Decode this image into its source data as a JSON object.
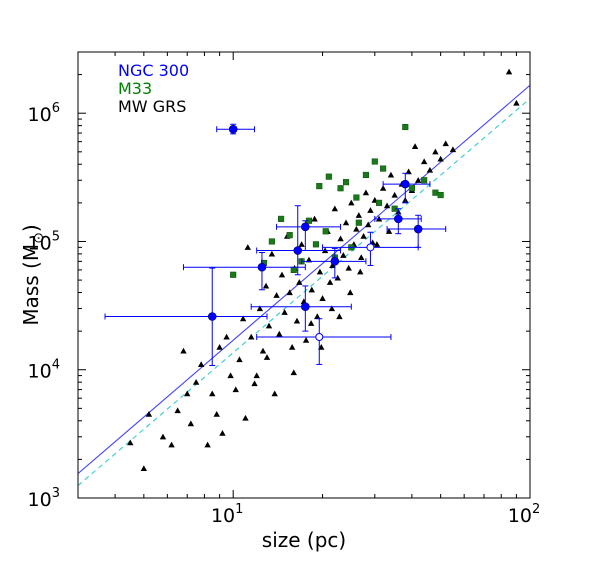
{
  "chart_data": {
    "type": "scatter",
    "xscale": "log",
    "yscale": "log",
    "xlim": [
      3,
      100
    ],
    "ylim": [
      1000,
      3000000
    ],
    "xlabel": "size (pc)",
    "ylabel_text": "Mass (M",
    "ylabel_sub": "⊙",
    "ylabel_close": ")",
    "xticks": [
      {
        "value": 10,
        "base": "10",
        "exp": "1"
      },
      {
        "value": 100,
        "base": "10",
        "exp": "2"
      }
    ],
    "yticks": [
      {
        "value": 1000,
        "base": "10",
        "exp": "3"
      },
      {
        "value": 10000,
        "base": "10",
        "exp": "4"
      },
      {
        "value": 100000,
        "base": "10",
        "exp": "5"
      },
      {
        "value": 1000000,
        "base": "10",
        "exp": "6"
      }
    ],
    "legend": [
      {
        "label": "NGC 300",
        "color": "#0000ff"
      },
      {
        "label": "M33",
        "color": "#008000"
      },
      {
        "label": "MW GRS",
        "color": "#000000"
      }
    ],
    "fit_lines": [
      {
        "style": "solid",
        "color": "#4444ff",
        "points": [
          [
            3,
            1550
          ],
          [
            100,
            1650000
          ]
        ]
      },
      {
        "style": "dashed",
        "color": "#33cccc",
        "points": [
          [
            3,
            1250
          ],
          [
            100,
            1300000
          ]
        ]
      }
    ],
    "series": [
      {
        "name": "NGC 300",
        "color": "#0000ff",
        "marker": "circle",
        "points": [
          {
            "x": 10.0,
            "y": 750000,
            "xerr": [
              8.8,
              11.8
            ],
            "yerr": [
              690000,
              820000
            ]
          },
          {
            "x": 8.5,
            "y": 26000,
            "xerr": [
              3.7,
              13.0
            ],
            "yerr": [
              10800,
              62000
            ]
          },
          {
            "x": 12.5,
            "y": 63000,
            "xerr": [
              6.8,
              17.5
            ],
            "yerr": [
              42000,
              82000
            ]
          },
          {
            "x": 16.5,
            "y": 85000,
            "xerr": [
              12.0,
              23.0
            ],
            "yerr": [
              55000,
              190000
            ]
          },
          {
            "x": 17.5,
            "y": 130000,
            "xerr": [
              14.0,
              23.0
            ],
            "yerr": [
              85000,
              145000
            ]
          },
          {
            "x": 17.5,
            "y": 31000,
            "xerr": [
              11.5,
              25.0
            ],
            "yerr": [
              20000,
              45000
            ]
          },
          {
            "x": 22.0,
            "y": 70000,
            "xerr": [
              17.0,
              28.0
            ],
            "yerr": [
              52000,
              88000
            ]
          },
          {
            "x": 36.0,
            "y": 150000,
            "xerr": [
              30.0,
              43.0
            ],
            "yerr": [
              115000,
              180000
            ]
          },
          {
            "x": 38.0,
            "y": 280000,
            "xerr": [
              32.0,
              46.0
            ],
            "yerr": [
              200000,
              340000
            ]
          },
          {
            "x": 42.0,
            "y": 125000,
            "xerr": [
              33.0,
              52.0
            ],
            "yerr": [
              90000,
              160000
            ]
          }
        ]
      },
      {
        "name": "NGC 300 (open)",
        "color": "#0000ff",
        "marker": "open-circle",
        "points": [
          {
            "x": 19.5,
            "y": 18000,
            "xerr": [
              12.0,
              34.0
            ],
            "yerr": [
              11000,
              25000
            ]
          },
          {
            "x": 29.0,
            "y": 90000,
            "xerr": [
              20.0,
              42.0
            ],
            "yerr": [
              65000,
              118000
            ]
          }
        ]
      },
      {
        "name": "M33",
        "color": "#1a7a1a",
        "marker": "square",
        "points": [
          {
            "x": 10.0,
            "y": 55000
          },
          {
            "x": 12.7,
            "y": 68000
          },
          {
            "x": 13.5,
            "y": 100000
          },
          {
            "x": 14.5,
            "y": 150000
          },
          {
            "x": 15.5,
            "y": 112000
          },
          {
            "x": 16.0,
            "y": 60000
          },
          {
            "x": 17.0,
            "y": 70000
          },
          {
            "x": 18.0,
            "y": 145000
          },
          {
            "x": 19.0,
            "y": 95000
          },
          {
            "x": 19.5,
            "y": 270000
          },
          {
            "x": 20.5,
            "y": 120000
          },
          {
            "x": 21.0,
            "y": 320000
          },
          {
            "x": 22.0,
            "y": 75000
          },
          {
            "x": 23.0,
            "y": 260000
          },
          {
            "x": 24.0,
            "y": 290000
          },
          {
            "x": 25.0,
            "y": 90000
          },
          {
            "x": 26.0,
            "y": 220000
          },
          {
            "x": 28.0,
            "y": 330000
          },
          {
            "x": 30.0,
            "y": 420000
          },
          {
            "x": 32.0,
            "y": 370000
          },
          {
            "x": 35.0,
            "y": 180000
          },
          {
            "x": 38.0,
            "y": 780000
          },
          {
            "x": 40.0,
            "y": 260000
          },
          {
            "x": 44.0,
            "y": 300000
          },
          {
            "x": 48.0,
            "y": 240000
          },
          {
            "x": 50.0,
            "y": 230000
          },
          {
            "x": 26.5,
            "y": 140000
          },
          {
            "x": 31.0,
            "y": 200000
          }
        ]
      },
      {
        "name": "MW GRS",
        "color": "#000000",
        "marker": "triangle",
        "points": [
          {
            "x": 4.5,
            "y": 2700
          },
          {
            "x": 5.0,
            "y": 1700
          },
          {
            "x": 5.2,
            "y": 4500
          },
          {
            "x": 5.8,
            "y": 3000
          },
          {
            "x": 6.2,
            "y": 2600
          },
          {
            "x": 6.5,
            "y": 4800
          },
          {
            "x": 6.8,
            "y": 14000
          },
          {
            "x": 7.0,
            "y": 6500
          },
          {
            "x": 7.2,
            "y": 3800
          },
          {
            "x": 7.5,
            "y": 8000
          },
          {
            "x": 7.8,
            "y": 11000
          },
          {
            "x": 8.2,
            "y": 2600
          },
          {
            "x": 8.5,
            "y": 6500
          },
          {
            "x": 8.8,
            "y": 4500
          },
          {
            "x": 9.0,
            "y": 15000
          },
          {
            "x": 9.2,
            "y": 3200
          },
          {
            "x": 9.5,
            "y": 18000
          },
          {
            "x": 9.8,
            "y": 9000
          },
          {
            "x": 10.2,
            "y": 7000
          },
          {
            "x": 10.5,
            "y": 12000
          },
          {
            "x": 10.8,
            "y": 25000
          },
          {
            "x": 11.0,
            "y": 4200
          },
          {
            "x": 11.2,
            "y": 90000
          },
          {
            "x": 11.5,
            "y": 18000
          },
          {
            "x": 11.8,
            "y": 7800
          },
          {
            "x": 12.0,
            "y": 9000
          },
          {
            "x": 12.3,
            "y": 30000
          },
          {
            "x": 12.6,
            "y": 14000
          },
          {
            "x": 12.9,
            "y": 45000
          },
          {
            "x": 13.2,
            "y": 22000
          },
          {
            "x": 13.5,
            "y": 80000
          },
          {
            "x": 13.8,
            "y": 6500
          },
          {
            "x": 14.0,
            "y": 38000
          },
          {
            "x": 14.3,
            "y": 19000
          },
          {
            "x": 14.6,
            "y": 55000
          },
          {
            "x": 14.9,
            "y": 28000
          },
          {
            "x": 15.2,
            "y": 110000
          },
          {
            "x": 15.5,
            "y": 40000
          },
          {
            "x": 15.8,
            "y": 15000
          },
          {
            "x": 16.1,
            "y": 62000
          },
          {
            "x": 16.4,
            "y": 24000
          },
          {
            "x": 16.7,
            "y": 48000
          },
          {
            "x": 17.0,
            "y": 95000
          },
          {
            "x": 17.3,
            "y": 34000
          },
          {
            "x": 17.6,
            "y": 17000
          },
          {
            "x": 18.0,
            "y": 72000
          },
          {
            "x": 18.4,
            "y": 42000
          },
          {
            "x": 18.8,
            "y": 150000
          },
          {
            "x": 19.2,
            "y": 26000
          },
          {
            "x": 19.6,
            "y": 58000
          },
          {
            "x": 20.0,
            "y": 36000
          },
          {
            "x": 20.4,
            "y": 85000
          },
          {
            "x": 20.8,
            "y": 120000
          },
          {
            "x": 21.2,
            "y": 48000
          },
          {
            "x": 21.6,
            "y": 65000
          },
          {
            "x": 22.0,
            "y": 180000
          },
          {
            "x": 22.5,
            "y": 52000
          },
          {
            "x": 23.0,
            "y": 105000
          },
          {
            "x": 23.5,
            "y": 78000
          },
          {
            "x": 24.0,
            "y": 140000
          },
          {
            "x": 24.5,
            "y": 62000
          },
          {
            "x": 25.0,
            "y": 200000
          },
          {
            "x": 25.5,
            "y": 95000
          },
          {
            "x": 26.0,
            "y": 125000
          },
          {
            "x": 26.5,
            "y": 160000
          },
          {
            "x": 27.0,
            "y": 75000
          },
          {
            "x": 27.5,
            "y": 110000
          },
          {
            "x": 28.0,
            "y": 240000
          },
          {
            "x": 28.5,
            "y": 135000
          },
          {
            "x": 29.0,
            "y": 175000
          },
          {
            "x": 29.5,
            "y": 98000
          },
          {
            "x": 30.0,
            "y": 210000
          },
          {
            "x": 31.0,
            "y": 150000
          },
          {
            "x": 32.0,
            "y": 260000
          },
          {
            "x": 33.0,
            "y": 190000
          },
          {
            "x": 34.0,
            "y": 330000
          },
          {
            "x": 35.0,
            "y": 230000
          },
          {
            "x": 36.0,
            "y": 170000
          },
          {
            "x": 37.0,
            "y": 280000
          },
          {
            "x": 38.0,
            "y": 210000
          },
          {
            "x": 39.0,
            "y": 350000
          },
          {
            "x": 40.0,
            "y": 250000
          },
          {
            "x": 41.0,
            "y": 550000
          },
          {
            "x": 42.0,
            "y": 300000
          },
          {
            "x": 44.0,
            "y": 420000
          },
          {
            "x": 46.0,
            "y": 360000
          },
          {
            "x": 48.0,
            "y": 500000
          },
          {
            "x": 50.0,
            "y": 440000
          },
          {
            "x": 52.0,
            "y": 580000
          },
          {
            "x": 55.0,
            "y": 520000
          },
          {
            "x": 85.0,
            "y": 2100000
          },
          {
            "x": 90.0,
            "y": 1200000
          },
          {
            "x": 22.8,
            "y": 26000
          },
          {
            "x": 19.8,
            "y": 15000
          },
          {
            "x": 24.8,
            "y": 40000
          },
          {
            "x": 13.0,
            "y": 12500
          },
          {
            "x": 16.0,
            "y": 9500
          },
          {
            "x": 18.3,
            "y": 23000
          },
          {
            "x": 21.5,
            "y": 30000
          },
          {
            "x": 26.8,
            "y": 58000
          },
          {
            "x": 30.5,
            "y": 95000
          },
          {
            "x": 33.5,
            "y": 120000
          }
        ]
      }
    ]
  }
}
